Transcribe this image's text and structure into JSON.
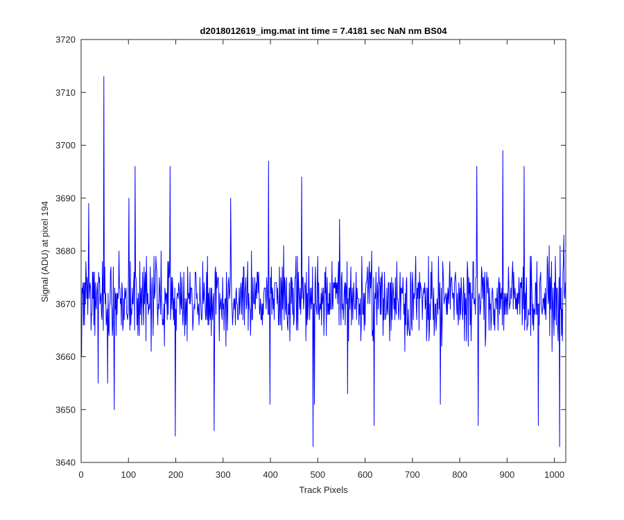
{
  "chart_data": {
    "type": "line",
    "title": "d2018012619_img.mat int time = 7.4181 sec  NaN nm BS04",
    "xlabel": "Track Pixels",
    "ylabel": "Signal (ADU) at pixel 194",
    "xlim": [
      0,
      1024
    ],
    "ylim": [
      3640,
      3720
    ],
    "xticks": [
      0,
      100,
      200,
      300,
      400,
      500,
      600,
      700,
      800,
      900,
      1000
    ],
    "yticks": [
      3640,
      3650,
      3660,
      3670,
      3680,
      3690,
      3700,
      3710,
      3720
    ],
    "grid": false,
    "series": [
      {
        "color": "#0000ff",
        "n_points": 1024,
        "baseline": 3671,
        "noise_amplitude": 7,
        "notable_points": [
          [
            0,
            3660
          ],
          [
            15,
            3689
          ],
          [
            35,
            3655
          ],
          [
            47,
            3713
          ],
          [
            55,
            3655
          ],
          [
            69,
            3650
          ],
          [
            100,
            3690
          ],
          [
            113,
            3696
          ],
          [
            187,
            3696
          ],
          [
            198,
            3645
          ],
          [
            280,
            3646
          ],
          [
            315,
            3690
          ],
          [
            395,
            3697
          ],
          [
            398,
            3651
          ],
          [
            465,
            3694
          ],
          [
            489,
            3643
          ],
          [
            492,
            3651
          ],
          [
            545,
            3686
          ],
          [
            562,
            3653
          ],
          [
            618,
            3647
          ],
          [
            758,
            3651
          ],
          [
            835,
            3696
          ],
          [
            838,
            3647
          ],
          [
            890,
            3699
          ],
          [
            935,
            3696
          ],
          [
            965,
            3647
          ],
          [
            1010,
            3643
          ],
          [
            1019,
            3683
          ]
        ]
      }
    ]
  }
}
